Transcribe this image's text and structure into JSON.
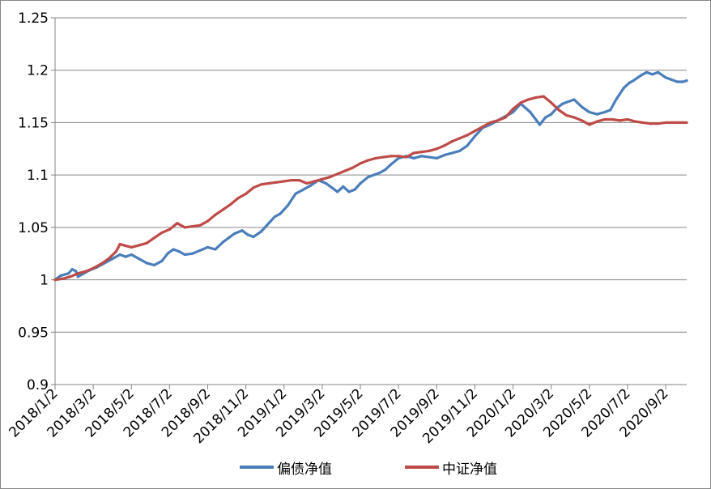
{
  "chart_data": {
    "type": "line",
    "title": "",
    "xlabel": "",
    "ylabel": "",
    "ylim": [
      0.9,
      1.25
    ],
    "yticks": [
      "0.9",
      "0.95",
      "1",
      "1.05",
      "1.1",
      "1.15",
      "1.2",
      "1.25"
    ],
    "xticks": [
      "2018/1/2",
      "2018/3/2",
      "2018/5/2",
      "2018/7/2",
      "2018/9/2",
      "2018/11/2",
      "2019/1/2",
      "2019/3/2",
      "2019/5/2",
      "2019/7/2",
      "2019/9/2",
      "2019/11/2",
      "2020/1/2",
      "2020/3/2",
      "2020/5/2",
      "2020/7/2",
      "2020/9/2"
    ],
    "xrange": [
      0,
      16.55
    ],
    "grid": "horizontal",
    "legend": "bottom",
    "series": [
      {
        "name": "偏债净值",
        "color": "#4a7ebb",
        "x": [
          0,
          0.15,
          0.35,
          0.45,
          0.55,
          0.6,
          0.75,
          0.9,
          1.1,
          1.3,
          1.5,
          1.7,
          1.85,
          2.0,
          2.2,
          2.4,
          2.6,
          2.8,
          2.95,
          3.1,
          3.25,
          3.4,
          3.6,
          3.8,
          4.0,
          4.2,
          4.4,
          4.55,
          4.7,
          4.9,
          5.05,
          5.2,
          5.4,
          5.6,
          5.75,
          5.9,
          6.1,
          6.3,
          6.5,
          6.7,
          6.9,
          7.1,
          7.25,
          7.4,
          7.55,
          7.7,
          7.85,
          8.0,
          8.2,
          8.35,
          8.5,
          8.65,
          8.8,
          9.0,
          9.2,
          9.4,
          9.6,
          9.8,
          10.0,
          10.2,
          10.4,
          10.6,
          10.8,
          11.0,
          11.2,
          11.4,
          11.6,
          11.8,
          12.0,
          12.2,
          12.45,
          12.7,
          12.85,
          13.0,
          13.15,
          13.3,
          13.45,
          13.6,
          13.8,
          14.0,
          14.2,
          14.4,
          14.55,
          14.7,
          14.9,
          15.05,
          15.15,
          15.35,
          15.5,
          15.65,
          15.8,
          16.0,
          16.15,
          16.3,
          16.45,
          16.55
        ],
        "values": [
          1.0,
          1.004,
          1.006,
          1.01,
          1.008,
          1.003,
          1.006,
          1.009,
          1.012,
          1.016,
          1.02,
          1.024,
          1.022,
          1.024,
          1.02,
          1.016,
          1.014,
          1.018,
          1.025,
          1.029,
          1.027,
          1.024,
          1.025,
          1.028,
          1.031,
          1.029,
          1.036,
          1.04,
          1.044,
          1.047,
          1.043,
          1.041,
          1.046,
          1.054,
          1.06,
          1.063,
          1.071,
          1.082,
          1.086,
          1.09,
          1.095,
          1.092,
          1.088,
          1.084,
          1.089,
          1.084,
          1.086,
          1.092,
          1.098,
          1.1,
          1.102,
          1.105,
          1.11,
          1.116,
          1.118,
          1.116,
          1.118,
          1.117,
          1.116,
          1.119,
          1.121,
          1.123,
          1.128,
          1.137,
          1.145,
          1.148,
          1.152,
          1.156,
          1.16,
          1.168,
          1.16,
          1.148,
          1.155,
          1.158,
          1.164,
          1.168,
          1.17,
          1.172,
          1.165,
          1.16,
          1.158,
          1.16,
          1.162,
          1.172,
          1.183,
          1.188,
          1.19,
          1.195,
          1.198,
          1.196,
          1.198,
          1.193,
          1.191,
          1.189,
          1.189,
          1.19
        ]
      },
      {
        "name": "中证净值",
        "color": "#be4b48",
        "x": [
          0,
          0.2,
          0.4,
          0.6,
          0.8,
          1.0,
          1.2,
          1.4,
          1.6,
          1.7,
          1.8,
          2.0,
          2.2,
          2.4,
          2.6,
          2.8,
          3.0,
          3.2,
          3.4,
          3.6,
          3.8,
          4.0,
          4.2,
          4.4,
          4.6,
          4.8,
          5.0,
          5.2,
          5.4,
          5.6,
          5.8,
          6.0,
          6.2,
          6.4,
          6.6,
          6.8,
          7.0,
          7.2,
          7.4,
          7.6,
          7.8,
          8.0,
          8.2,
          8.4,
          8.6,
          8.8,
          9.0,
          9.2,
          9.4,
          9.6,
          9.8,
          10.0,
          10.2,
          10.4,
          10.6,
          10.8,
          11.0,
          11.2,
          11.4,
          11.6,
          11.8,
          12.0,
          12.2,
          12.4,
          12.6,
          12.8,
          13.0,
          13.2,
          13.4,
          13.6,
          13.8,
          14.0,
          14.2,
          14.4,
          14.6,
          14.8,
          15.0,
          15.2,
          15.4,
          15.6,
          15.8,
          16.0,
          16.2,
          16.4,
          16.55
        ],
        "values": [
          1.0,
          1.001,
          1.003,
          1.006,
          1.008,
          1.011,
          1.015,
          1.02,
          1.027,
          1.034,
          1.033,
          1.031,
          1.033,
          1.035,
          1.04,
          1.045,
          1.048,
          1.054,
          1.05,
          1.051,
          1.052,
          1.056,
          1.062,
          1.067,
          1.072,
          1.078,
          1.082,
          1.088,
          1.091,
          1.092,
          1.093,
          1.094,
          1.095,
          1.095,
          1.092,
          1.094,
          1.096,
          1.098,
          1.101,
          1.104,
          1.107,
          1.111,
          1.114,
          1.116,
          1.117,
          1.118,
          1.118,
          1.117,
          1.121,
          1.122,
          1.123,
          1.125,
          1.128,
          1.132,
          1.135,
          1.138,
          1.142,
          1.146,
          1.15,
          1.152,
          1.155,
          1.163,
          1.169,
          1.172,
          1.174,
          1.175,
          1.169,
          1.162,
          1.157,
          1.155,
          1.152,
          1.148,
          1.151,
          1.153,
          1.153,
          1.152,
          1.153,
          1.151,
          1.15,
          1.149,
          1.149,
          1.15,
          1.15,
          1.15,
          1.15
        ]
      }
    ]
  }
}
